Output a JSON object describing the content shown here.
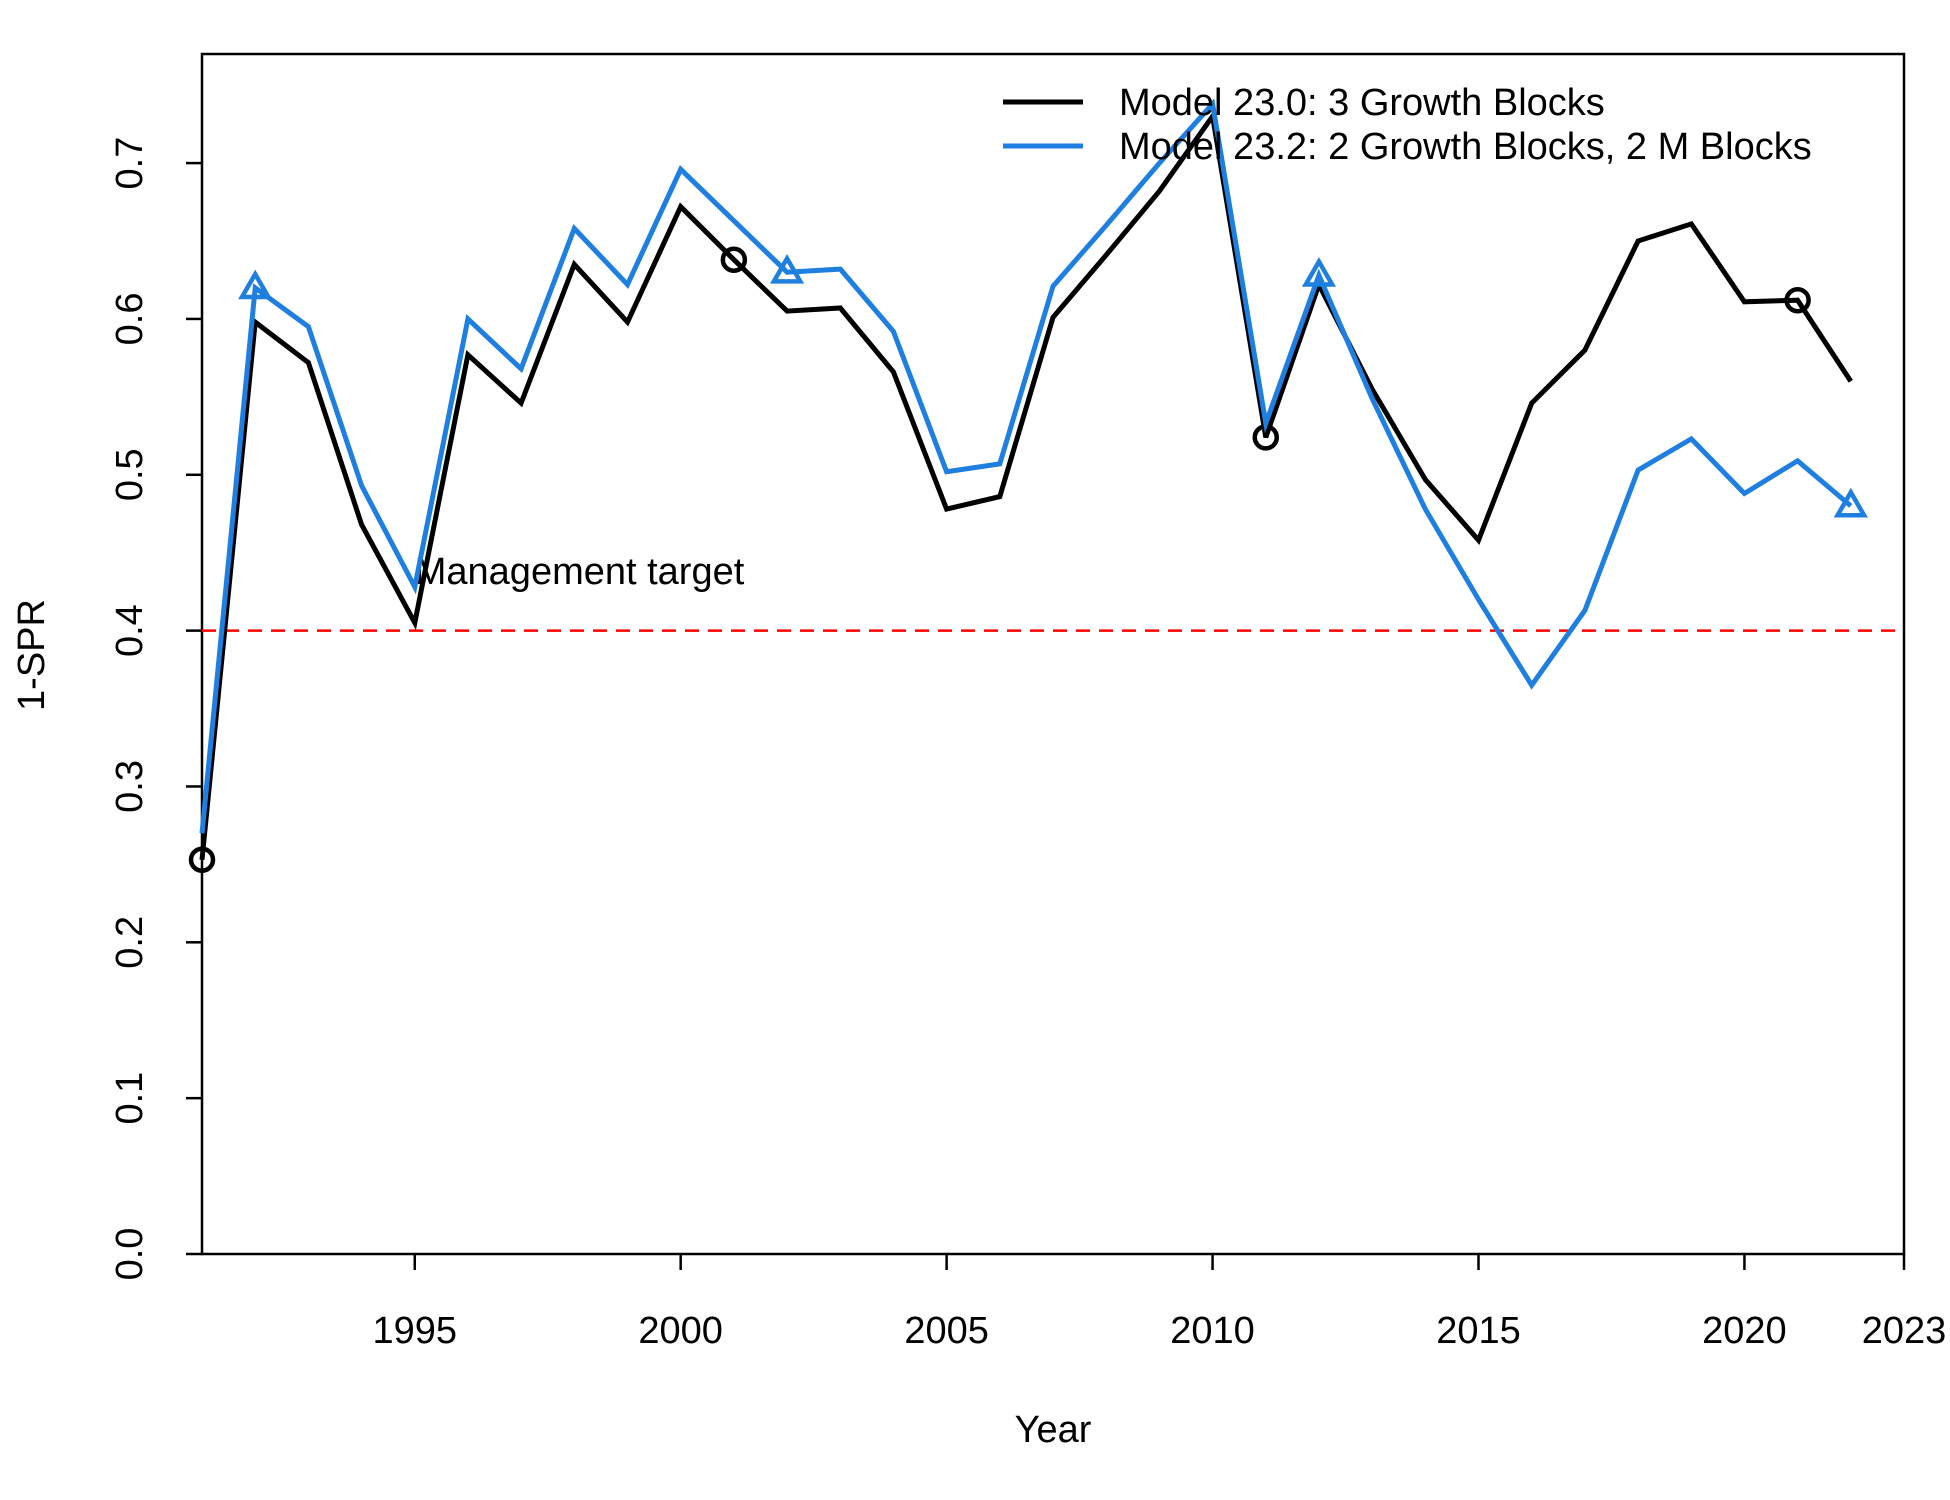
{
  "chart_data": {
    "type": "line",
    "xlabel": "Year",
    "ylabel": "1-SPR",
    "xlim": [
      1991,
      2023
    ],
    "ylim": [
      0,
      0.77
    ],
    "x_ticks": [
      1995,
      2000,
      2005,
      2010,
      2015,
      2020,
      2023
    ],
    "y_ticks": [
      0.0,
      0.1,
      0.2,
      0.3,
      0.4,
      0.5,
      0.6,
      0.7
    ],
    "y_tick_labels": [
      "0.0",
      "0.1",
      "0.2",
      "0.3",
      "0.4",
      "0.5",
      "0.6",
      "0.7"
    ],
    "grid": false,
    "legend_position": "top-right",
    "reference_line": {
      "y": 0.4,
      "color": "#ff0000",
      "style": "dashed",
      "label": "Management target"
    },
    "x": [
      1991,
      1992,
      1993,
      1994,
      1995,
      1996,
      1997,
      1998,
      1999,
      2000,
      2001,
      2002,
      2003,
      2004,
      2005,
      2006,
      2007,
      2008,
      2009,
      2010,
      2011,
      2012,
      2013,
      2014,
      2015,
      2016,
      2017,
      2018,
      2019,
      2020,
      2021,
      2022
    ],
    "series": [
      {
        "name": "Model 23.0: 3 Growth Blocks",
        "color": "#000000",
        "marker": "circle",
        "marker_years": [
          1991,
          2001,
          2011,
          2021
        ],
        "values": [
          0.253,
          0.598,
          0.572,
          0.468,
          0.405,
          0.577,
          0.546,
          0.635,
          0.598,
          0.672,
          0.638,
          0.605,
          0.607,
          0.566,
          0.478,
          0.486,
          0.601,
          0.641,
          0.682,
          0.73,
          0.524,
          0.622,
          0.555,
          0.497,
          0.458,
          0.546,
          0.58,
          0.65,
          0.661,
          0.611,
          0.612,
          0.56
        ]
      },
      {
        "name": "Model 23.2: 2 Growth Blocks, 2 M Blocks",
        "color": "#1e7fe0",
        "marker": "triangle",
        "marker_years": [
          1992,
          2002,
          2012,
          2022
        ],
        "values": [
          0.27,
          0.62,
          0.595,
          0.493,
          0.428,
          0.6,
          0.568,
          0.658,
          0.622,
          0.696,
          0.663,
          0.63,
          0.632,
          0.592,
          0.502,
          0.507,
          0.621,
          0.66,
          0.7,
          0.738,
          0.533,
          0.628,
          0.549,
          0.478,
          0.42,
          0.365,
          0.413,
          0.503,
          0.523,
          0.488,
          0.509,
          0.48
        ]
      }
    ]
  }
}
